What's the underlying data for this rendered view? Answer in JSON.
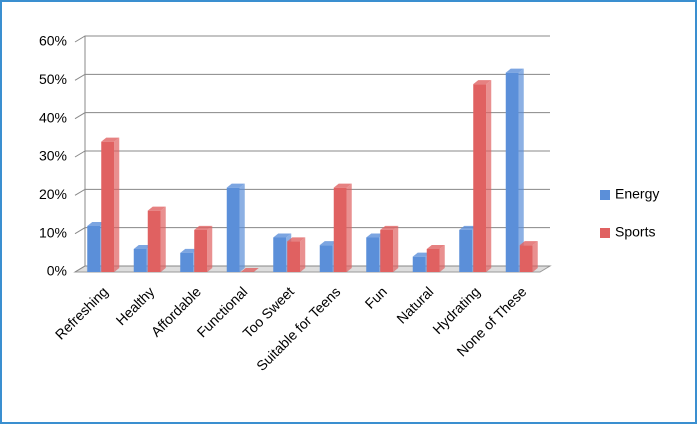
{
  "chart_data": {
    "type": "bar",
    "view": "3d",
    "categories": [
      "Refreshing",
      "Healthy",
      "Affordable",
      "Functional",
      "Too Sweet",
      "Suitable for Teens",
      "Fun",
      "Natural",
      "Hydrating",
      "None of These"
    ],
    "series": [
      {
        "name": "Energy",
        "color": "#5b8fd9",
        "values": [
          12,
          6,
          5,
          22,
          9,
          7,
          9,
          4,
          11,
          52
        ]
      },
      {
        "name": "Sports",
        "color": "#e06161",
        "values": [
          34,
          16,
          11,
          0,
          8,
          22,
          11,
          6,
          49,
          7
        ]
      }
    ],
    "ylim": [
      0,
      60
    ],
    "yticks": [
      {
        "value": 0,
        "label": "0%"
      },
      {
        "value": 10,
        "label": "10%"
      },
      {
        "value": 20,
        "label": "20%"
      },
      {
        "value": 30,
        "label": "30%"
      },
      {
        "value": 40,
        "label": "40%"
      },
      {
        "value": 50,
        "label": "50%"
      },
      {
        "value": 60,
        "label": "60%"
      }
    ],
    "grid": true,
    "legend": "right"
  }
}
